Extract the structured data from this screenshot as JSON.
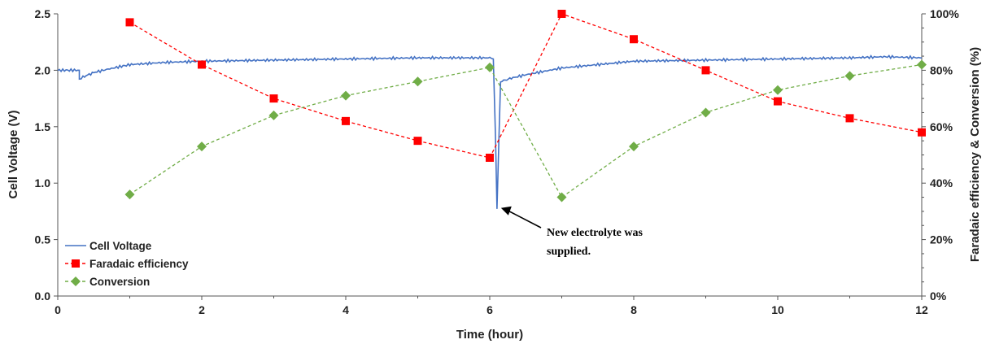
{
  "chart_data": {
    "type": "line",
    "title": "",
    "xlabel": "Time (hour)",
    "ylabel": "Cell Voltage (V)",
    "y2label": "Faradaic efficiency & Conversion (%)",
    "xlim": [
      0,
      12
    ],
    "ylim": [
      0,
      2.5
    ],
    "y2lim": [
      0,
      100
    ],
    "x_ticks": [
      0,
      2,
      4,
      6,
      8,
      10,
      12
    ],
    "y_ticks": [
      0.0,
      0.5,
      1.0,
      1.5,
      2.0,
      2.5
    ],
    "y_tick_labels": [
      "0.0",
      "0.5",
      "1.0",
      "1.5",
      "2.0",
      "2.5"
    ],
    "y2_ticks": [
      0,
      20,
      40,
      60,
      80,
      100
    ],
    "y2_tick_labels": [
      "0%",
      "20%",
      "40%",
      "60%",
      "80%",
      "100%"
    ],
    "grid": false,
    "legend_position": "bottom-left",
    "series": [
      {
        "name": "Cell Voltage",
        "axis": "left",
        "color": "#4472C4",
        "marker": "none",
        "style": "solid",
        "x": [
          0,
          0.3,
          0.3,
          0.35,
          0.5,
          0.7,
          1.0,
          1.5,
          2.0,
          3.0,
          4.0,
          5.0,
          5.5,
          6.0,
          6.05,
          6.08,
          6.1,
          6.15,
          6.3,
          6.5,
          7.0,
          7.5,
          8.0,
          9.0,
          10.0,
          11.0,
          11.5,
          12.0
        ],
        "y": [
          2.0,
          2.0,
          1.92,
          1.94,
          1.98,
          2.01,
          2.05,
          2.07,
          2.08,
          2.09,
          2.1,
          2.11,
          2.11,
          2.11,
          2.1,
          1.4,
          0.78,
          1.9,
          1.93,
          1.96,
          2.02,
          2.05,
          2.08,
          2.09,
          2.1,
          2.11,
          2.12,
          2.11
        ]
      },
      {
        "name": "Faradaic efficiency",
        "axis": "right",
        "color": "#FF0000",
        "marker": "square",
        "style": "dashed",
        "x": [
          1,
          2,
          3,
          4,
          5,
          6,
          7,
          8,
          9,
          10,
          11,
          12
        ],
        "y": [
          97,
          82,
          70,
          62,
          55,
          49,
          100,
          91,
          80,
          69,
          63,
          58
        ]
      },
      {
        "name": "Conversion",
        "axis": "right",
        "color": "#70AD47",
        "marker": "diamond",
        "style": "dashed",
        "x": [
          1,
          2,
          3,
          4,
          5,
          6,
          7,
          8,
          9,
          10,
          11,
          12
        ],
        "y": [
          36,
          53,
          64,
          71,
          76,
          81,
          35,
          53,
          65,
          73,
          78,
          82
        ]
      }
    ],
    "annotations": [
      {
        "text_lines": [
          "New electrolyte was",
          "supplied."
        ],
        "points_to": {
          "x": 6.1,
          "y": 0.78
        }
      }
    ]
  }
}
